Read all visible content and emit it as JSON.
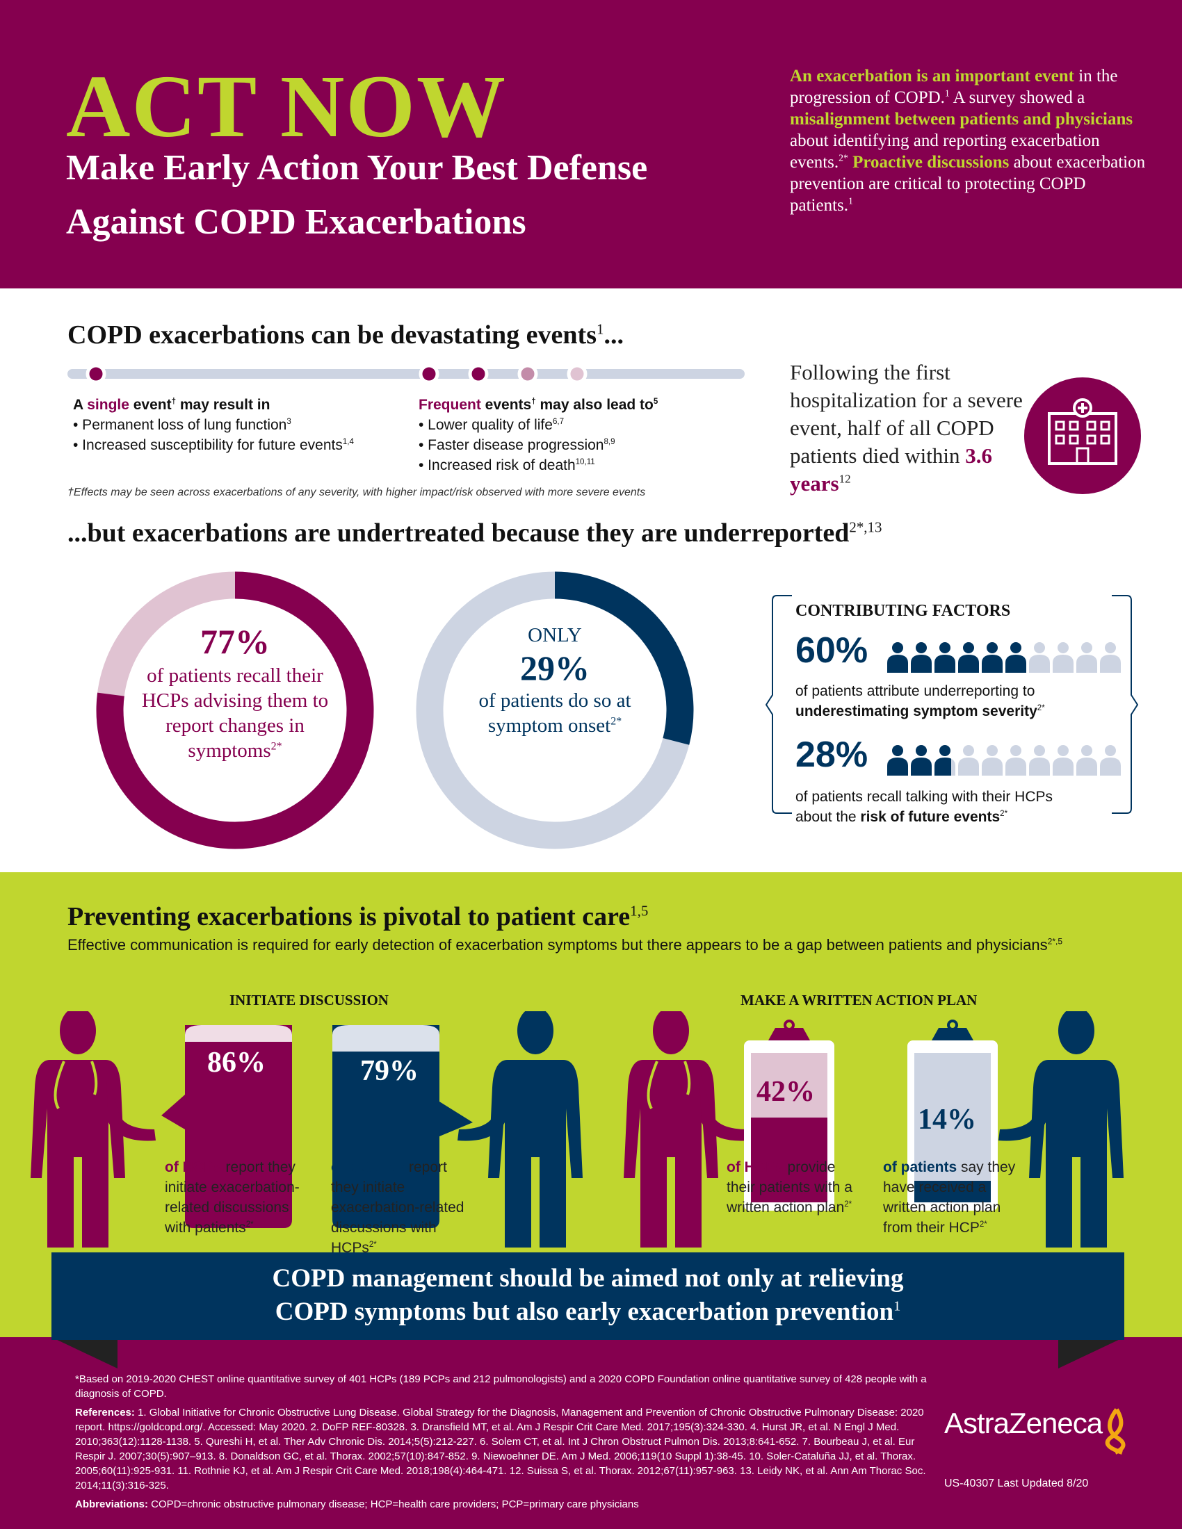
{
  "header": {
    "title": "ACT NOW",
    "subtitle_line1": "Make Early Action Your Best Defense",
    "subtitle_line2": "Against COPD Exacerbations",
    "intro": {
      "b1": "An exacerbation is an important event",
      "t1": " in the progression of COPD.",
      "s1": "1",
      "t2": " A survey showed a ",
      "b2": "misalignment between patients and physicians",
      "t3": " about identifying and reporting exacerbation events.",
      "s2": "2*",
      "b3": " Proactive discussions",
      "t4": " about exacerbation prevention are critical to protecting COPD patients.",
      "s3": "1"
    }
  },
  "section1": {
    "heading": "COPD exacerbations can be devastating events",
    "heading_sup": "1",
    "heading_end": "...",
    "single": {
      "a": "A ",
      "hl": "single",
      "b": " event",
      "dag": "†",
      "c": " may result in",
      "items": [
        {
          "t": "• Permanent loss of lung function",
          "s": "3"
        },
        {
          "t": "• Increased susceptibility for future events",
          "s": "1,4"
        }
      ]
    },
    "frequent": {
      "hl": "Frequent",
      "b": " events",
      "dag": "†",
      "c": " may also lead to",
      "sup": "5",
      "items": [
        {
          "t": "• Lower quality of life",
          "s": "6,7"
        },
        {
          "t": "• Faster disease progression",
          "s": "8,9"
        },
        {
          "t": "• Increased risk of death",
          "s": "10,11"
        }
      ]
    },
    "footnote": "†Effects may be seen across exacerbations of any severity, with higher impact/risk observed with more severe events",
    "hospital": {
      "text": "Following the first hospitalization for a severe event, half of all COPD patients died within ",
      "hl": "3.6 years",
      "sup": "12",
      "icon": "hospital-icon"
    }
  },
  "section2": {
    "heading": "...but exacerbations are undertreated because they are underreported",
    "heading_sup": "2*,13",
    "donut1": {
      "value": 77,
      "pct": "77%",
      "text": "of patients recall their HCPs advising them to report changes in symptoms",
      "sup": "2*",
      "color": "#85004f",
      "track": "#e0c3d2"
    },
    "donut2": {
      "value": 29,
      "pre": "ONLY",
      "pct": "29%",
      "text": "of patients do so at symptom onset",
      "sup": "2*",
      "color": "#00345e",
      "track": "#cdd4e2"
    },
    "factors": {
      "title": "CONTRIBUTING FACTORS",
      "items": [
        {
          "value": 60,
          "pct": "60%",
          "t1": "of patients attribute underreporting to",
          "b": "underestimating symptom severity",
          "sup": "2*"
        },
        {
          "value": 28,
          "pct": "28%",
          "t1": "of patients recall talking with their HCPs",
          "t2": "about the ",
          "b": "risk of future events",
          "sup": "2*"
        }
      ]
    }
  },
  "section3": {
    "heading": "Preventing exacerbations is pivotal to patient care",
    "heading_sup": "1,5",
    "subheading": "Effective communication is required for early detection of exacerbation symptoms but there appears to be a gap between patients and physicians",
    "sub_sup": "2*,5",
    "initiate": {
      "title": "INITIATE DISCUSSION",
      "hcp": {
        "value": 86,
        "pct": "86%",
        "hl": "of HCPs",
        "text": " report they initiate exacerbation-related discussions with patients",
        "sup": "2*"
      },
      "patient": {
        "value": 79,
        "pct": "79%",
        "hl": "of patients",
        "text": " report they initiate exacerbation-related discussions with HCPs",
        "sup": "2*"
      }
    },
    "plan": {
      "title": "MAKE A WRITTEN ACTION PLAN",
      "hcp": {
        "value": 42,
        "pct": "42%",
        "hl": "of HCPs",
        "text": " provide their patients with a written action plan",
        "sup": "2*"
      },
      "patient": {
        "value": 14,
        "pct": "14%",
        "hl": "of patients",
        "text": " say they have received a written action plan from their HCP",
        "sup": "2*"
      }
    },
    "banner": {
      "line1": "COPD management should be aimed not only at relieving",
      "line2": "COPD symptoms but also early exacerbation prevention",
      "sup": "1"
    }
  },
  "footer": {
    "survey": "*Based on 2019-2020 CHEST online quantitative survey of 401 HCPs (189 PCPs and 212 pulmonologists) and a 2020 COPD Foundation online quantitative survey of 428 people with a diagnosis of COPD.",
    "ref_label": "References:",
    "references": "1. Global Initiative for Chronic Obstructive Lung Disease. Global Strategy for the Diagnosis, Management and Prevention of Chronic Obstructive Pulmonary Disease: 2020 report. https://goldcopd.org/. Accessed: May 2020.  2. DoFP REF-80328.  3. Dransfield MT, et al. Am J Respir Crit Care Med. 2017;195(3):324-330.  4. Hurst JR, et al. N Engl J Med. 2010;363(12):1128-1138.  5. Qureshi H, et al. Ther Adv Chronic Dis. 2014;5(5):212-227.  6. Solem CT, et al. Int J Chron Obstruct Pulmon Dis. 2013;8:641-652.  7. Bourbeau J, et al. Eur Respir J. 2007;30(5):907–913.  8. Donaldson GC, et al. Thorax. 2002;57(10):847-852.  9. Niewoehner DE. Am J Med. 2006;119(10 Suppl 1):38-45.  10. Soler-Cataluña JJ, et al. Thorax. 2005;60(11):925-931.  11. Rothnie KJ, et al. Am J Respir Crit Care Med. 2018;198(4):464-471.  12. Suissa S, et al. Thorax. 2012;67(11):957-963.  13. Leidy NK, et al. Ann Am Thorac Soc. 2014;11(3):316-325.",
    "abbr_label": "Abbreviations:",
    "abbr": " COPD=chronic obstructive pulmonary disease; HCP=health care providers; PCP=primary care physicians",
    "logo": "AstraZeneca",
    "code": "US-40307 Last Updated 8/20"
  },
  "colors": {
    "purple": "#85004f",
    "lime": "#c0d62f",
    "navy": "#00345e",
    "light_blue": "#cdd4e2",
    "light_pink": "#e0c3d2"
  }
}
